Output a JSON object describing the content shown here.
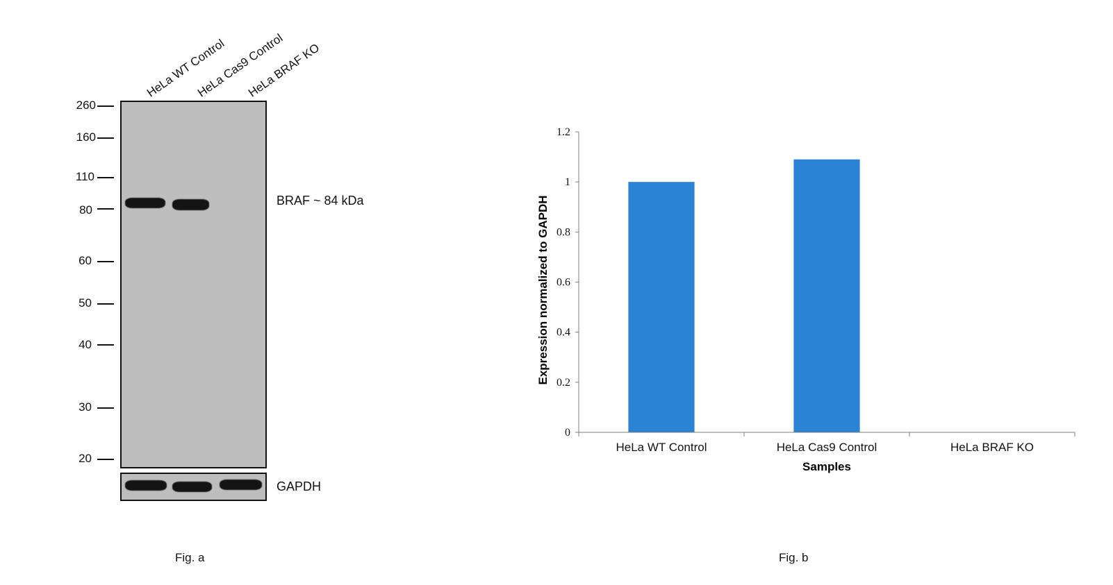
{
  "blot": {
    "lanes": [
      "HeLa WT Control",
      "HeLa Cas9 Control",
      "HeLa BRAF KO"
    ],
    "markers": [
      "260",
      "160",
      "110",
      "80",
      "60",
      "50",
      "40",
      "30",
      "20"
    ],
    "band_label": "BRAF ~ 84 kDa",
    "loading_label": "GAPDH",
    "caption": "Fig. a"
  },
  "chart_caption": "Fig. b",
  "chart_data": {
    "type": "bar",
    "categories": [
      "HeLa WT Control",
      "HeLa Cas9 Control",
      "HeLa BRAF KO"
    ],
    "values": [
      1.0,
      1.09,
      0
    ],
    "xlabel": "Samples",
    "ylabel": "Expression  normalized to GAPDH",
    "ylim": [
      0,
      1.2
    ],
    "yticks": [
      "0",
      "0.2",
      "0.4",
      "0.6",
      "0.8",
      "1",
      "1.2"
    ],
    "bar_color": "#2A83D5",
    "grid": false,
    "legend": "none"
  }
}
